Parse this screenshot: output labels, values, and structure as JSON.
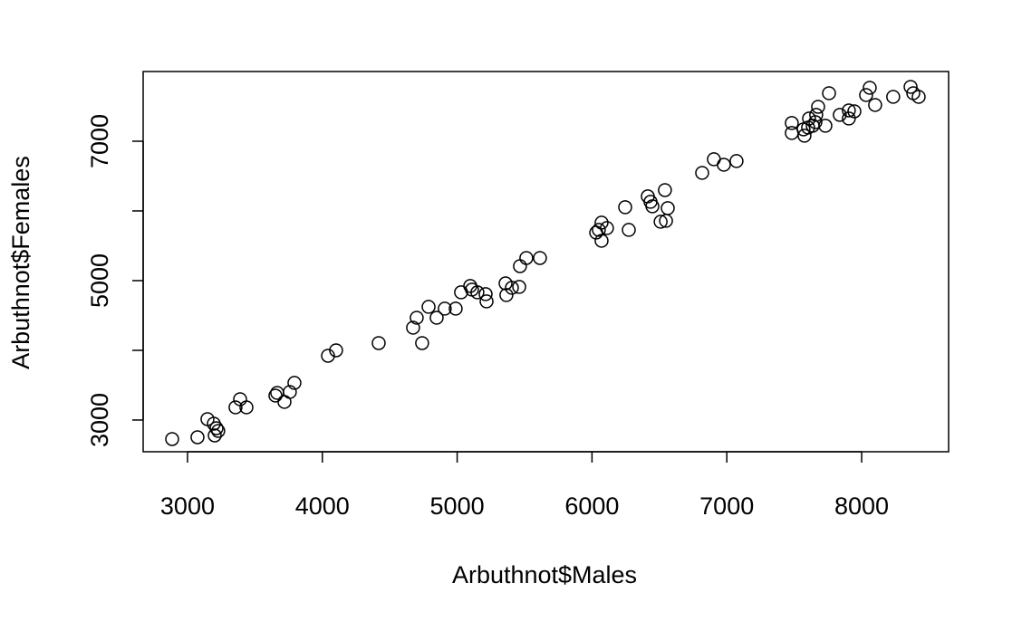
{
  "chart_data": {
    "type": "scatter",
    "x_label": "Arbuthnot$Males",
    "y_label": "Arbuthnot$Females",
    "x": [
      2886,
      3074,
      3148,
      3195,
      3215,
      3228,
      3202,
      3356,
      3390,
      3437,
      3652,
      3665,
      3719,
      3759,
      3793,
      4042,
      4102,
      4418,
      4673,
      4700,
      4740,
      4788,
      4848,
      4908,
      4989,
      5029,
      5097,
      5110,
      5150,
      5211,
      5218,
      5359,
      5365,
      5406,
      5460,
      5466,
      5513,
      5614,
      6031,
      6051,
      6071,
      6071,
      6111,
      6246,
      6273,
      6414,
      6434,
      6448,
      6509,
      6549,
      6541,
      6562,
      6817,
      6904,
      6978,
      7072,
      7482,
      7482,
      7569,
      7576,
      7603,
      7610,
      7637,
      7657,
      7663,
      7677,
      7731,
      7758,
      7838,
      7905,
      7905,
      7946,
      8033,
      8060,
      8100,
      8234,
      8363,
      8383,
      8423
    ],
    "y": [
      2727,
      2753,
      3013,
      2948,
      2883,
      2844,
      2779,
      3182,
      3299,
      3182,
      3351,
      3390,
      3260,
      3403,
      3533,
      3922,
      4000,
      4104,
      4325,
      4468,
      4104,
      4624,
      4468,
      4598,
      4598,
      4832,
      4923,
      4871,
      4832,
      4806,
      4702,
      4961,
      4793,
      4897,
      4910,
      5208,
      5325,
      5325,
      5689,
      5728,
      5832,
      5572,
      5754,
      6053,
      5728,
      6209,
      6131,
      6066,
      5845,
      5858,
      6299,
      6040,
      6546,
      6741,
      6663,
      6715,
      7261,
      7118,
      7170,
      7079,
      7196,
      7326,
      7222,
      7274,
      7378,
      7494,
      7222,
      7689,
      7378,
      7442,
      7326,
      7429,
      7663,
      7767,
      7520,
      7637,
      7780,
      7689,
      7637
    ],
    "color": "#000000",
    "xlim": [
      2671,
      8645
    ],
    "ylim": [
      2545,
      8000
    ],
    "xticks": [
      3000,
      4000,
      5000,
      6000,
      7000,
      8000
    ],
    "yticks": [
      3000,
      5000,
      7000
    ],
    "y_minor_ticks": [
      4000,
      6000
    ],
    "grid": false
  }
}
